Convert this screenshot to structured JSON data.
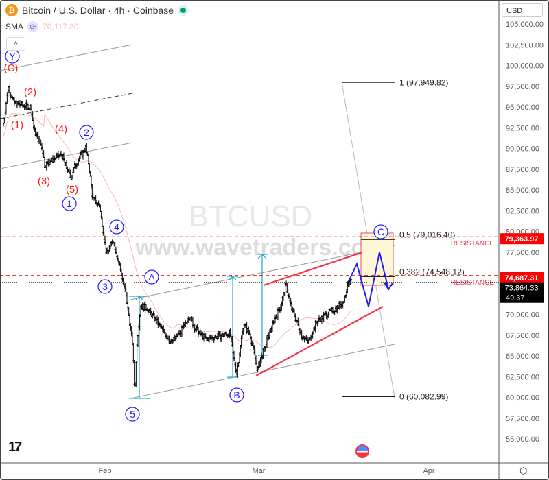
{
  "header": {
    "title": "Bitcoin / U.S. Dollar · 4h · Coinbase",
    "symbol_icon": "bitcoin-icon",
    "status_icon": "market-open-dot",
    "sma_label": "SMA",
    "sma_value": "70,117.30",
    "collapse_icon": "chevron-up-icon"
  },
  "currency": "USD",
  "watermark": {
    "symbol": "BTCUSD",
    "site": "www.wavetraders.com"
  },
  "colors": {
    "candle": "#000000",
    "sma": "#f7b9b9",
    "wave_red": "#ff1a1a",
    "wave_blue": "#1a1aff",
    "resistance": "#e00000",
    "wedge": "#f23645",
    "measure": "#22aacc",
    "channel": "#999999",
    "badge_red": "#ff0000",
    "badge_black": "#000000"
  },
  "chart_data": {
    "type": "candlestick",
    "timeframe": "4h",
    "x_ticks": [
      {
        "label": "Feb",
        "date": "2026-02-01"
      },
      {
        "label": "Mar",
        "date": "2026-03-01"
      },
      {
        "label": "Apr",
        "date": "2026-04-01"
      }
    ],
    "ylim": [
      53000,
      107000
    ],
    "y_ticks": [
      "105,000.00",
      "102,500.00",
      "100,000.00",
      "97,500.00",
      "95,000.00",
      "92,500.00",
      "90,000.00",
      "87,500.00",
      "85,000.00",
      "82,500.00",
      "80,000.00",
      "77,500.00",
      "70,000.00",
      "67,500.00",
      "65,000.00",
      "62,500.00",
      "60,000.00",
      "57,500.00",
      "55,000.00"
    ],
    "price_path": [
      [
        "2026-01-13T12:00",
        93000
      ],
      [
        "2026-01-14T10:00",
        97560
      ],
      [
        "2026-01-15T10:00",
        95500
      ],
      [
        "2026-01-18T12:00",
        95000
      ],
      [
        "2026-01-19T02:00",
        92200
      ],
      [
        "2026-01-20T14:00",
        90100
      ],
      [
        "2026-01-21T00:00",
        88000
      ],
      [
        "2026-01-24T02:00",
        89300
      ],
      [
        "2026-01-25T18:00",
        86400
      ],
      [
        "2026-01-26T14:00",
        88000
      ],
      [
        "2026-01-28T12:00",
        90100
      ],
      [
        "2026-01-29T02:00",
        88000
      ],
      [
        "2026-01-29T18:00",
        84000
      ],
      [
        "2026-01-31T00:00",
        83100
      ],
      [
        "2026-01-31T14:00",
        80600
      ],
      [
        "2026-02-01T06:00",
        77300
      ],
      [
        "2026-02-02T12:00",
        79000
      ],
      [
        "2026-02-03T18:00",
        75700
      ],
      [
        "2026-02-05T00:00",
        71500
      ],
      [
        "2026-02-06T00:00",
        66600
      ],
      [
        "2026-02-06T10:00",
        60400
      ],
      [
        "2026-02-06T20:00",
        66600
      ],
      [
        "2026-02-07T12:00",
        71100
      ],
      [
        "2026-02-08T18:00",
        70700
      ],
      [
        "2026-02-10T14:00",
        69000
      ],
      [
        "2026-02-13T02:00",
        66600
      ],
      [
        "2026-02-15T14:00",
        68600
      ],
      [
        "2026-02-16T06:00",
        69900
      ],
      [
        "2026-02-17T12:00",
        68300
      ],
      [
        "2026-02-19T10:00",
        67000
      ],
      [
        "2026-02-21T22:00",
        67400
      ],
      [
        "2026-02-23T18:00",
        67800
      ],
      [
        "2026-02-24T10:00",
        64900
      ],
      [
        "2026-02-25T00:00",
        62900
      ],
      [
        "2026-02-26T06:00",
        69000
      ],
      [
        "2026-02-27T12:00",
        67400
      ],
      [
        "2026-02-28T18:00",
        63300
      ],
      [
        "2026-03-02T00:00",
        65800
      ],
      [
        "2026-03-03T06:00",
        68300
      ],
      [
        "2026-03-05T02:00",
        71200
      ],
      [
        "2026-03-05T22:00",
        73600
      ],
      [
        "2026-03-07T00:00",
        70700
      ],
      [
        "2026-03-08T22:00",
        67400
      ],
      [
        "2026-03-10T02:00",
        66600
      ],
      [
        "2026-03-11T10:00",
        69000
      ],
      [
        "2026-03-13T22:00",
        70300
      ],
      [
        "2026-03-15T02:00",
        70700
      ],
      [
        "2026-03-16T10:00",
        71500
      ],
      [
        "2026-03-17T14:00",
        74400
      ],
      [
        "2026-03-17T20:00",
        73864.33
      ]
    ],
    "fib_levels": [
      {
        "ratio": 1,
        "price": 97949.82,
        "label": "1 (97,949.82)"
      },
      {
        "ratio": 0.5,
        "price": 79016.4,
        "label": "0.5 (79,016.40)"
      },
      {
        "ratio": 0.382,
        "price": 74548.12,
        "label": "0.382 (74,548.12)"
      },
      {
        "ratio": 0,
        "price": 60082.99,
        "label": "0 (60,082.99)"
      }
    ],
    "resistance": [
      {
        "price": 79363.97,
        "label": "RESISTANCE",
        "badge": "79,363.97"
      },
      {
        "price": 74687.31,
        "label": "RESISTANCE",
        "badge": "74,687.31"
      }
    ],
    "last_price": {
      "price": 73864.33,
      "label": "73,864.33",
      "countdown": "49:37"
    },
    "wave_labels": {
      "red": [
        "(C)",
        "(2)",
        "(1)",
        "(4)",
        "(3)",
        "(5)"
      ],
      "blue": [
        "Y",
        "2",
        "1",
        "4",
        "3",
        "5",
        "A",
        "B",
        "C"
      ]
    }
  }
}
